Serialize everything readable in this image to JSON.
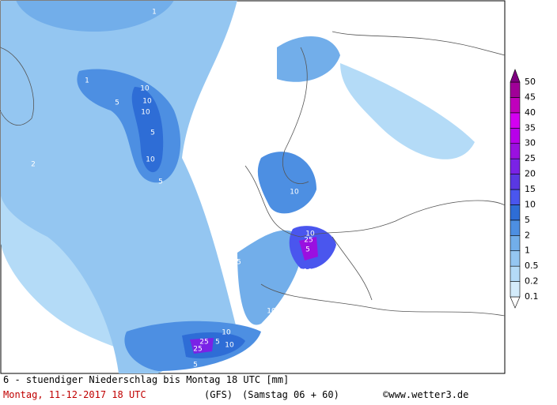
{
  "map": {
    "title": "6 - stuendiger Niederschlag bis Montag 18 UTC [mm]",
    "date": "Montag, 11-12-2017  18 UTC",
    "model": "(GFS)",
    "run": "(Samstag 06 + 60)",
    "source": "©www.wetter3.de",
    "contour_labels": [
      10,
      5,
      10,
      10,
      5,
      10,
      5,
      10,
      10,
      5,
      10,
      25,
      10,
      5,
      10,
      5,
      25,
      25,
      10,
      5,
      1,
      1,
      1,
      2,
      5
    ]
  },
  "legend": {
    "levels": [
      0.1,
      0.2,
      0.5,
      1,
      2,
      5,
      10,
      15,
      20,
      25,
      30,
      35,
      40,
      45,
      50
    ],
    "colors": [
      "#d4ecfb",
      "#b4dbf7",
      "#94c6f1",
      "#72aeea",
      "#4d8fe2",
      "#2e6dd6",
      "#4a56ee",
      "#5a38e2",
      "#7a22e6",
      "#9a10e0",
      "#b800ea",
      "#d400f2",
      "#c000bc",
      "#a00098",
      "#7e0080"
    ]
  }
}
